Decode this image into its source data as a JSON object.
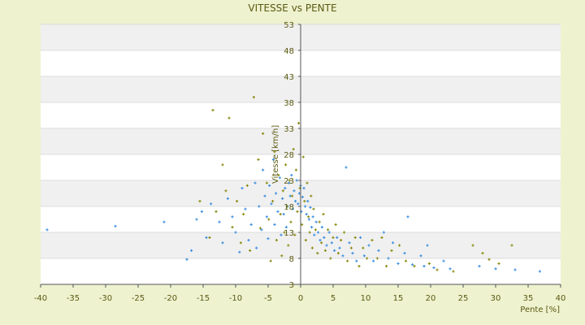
{
  "chart_data": {
    "type": "scatter",
    "title": "VITESSE vs PENTE",
    "xlabel": "Pente [%]",
    "ylabel": "Vitesse [km/h]",
    "xlim": [
      -40,
      40
    ],
    "ylim": [
      3,
      53
    ],
    "x_ticks": [
      -40,
      -35,
      -30,
      -25,
      -20,
      -15,
      -10,
      -5,
      0,
      5,
      10,
      15,
      20,
      25,
      30,
      35,
      40
    ],
    "y_ticks": [
      3,
      8,
      13,
      18,
      23,
      28,
      33,
      38,
      43,
      48,
      53
    ],
    "y_axis_position": "at x = 0",
    "background_bands": "alternating white / light gray between gridlines",
    "grid": "horizontal",
    "legend": "none",
    "series": [
      {
        "color": "#3b8ee0",
        "marker": "small cross",
        "points": [
          [
            -39,
            13.5
          ],
          [
            -28.5,
            14.2
          ],
          [
            -21,
            15
          ],
          [
            -17.5,
            7.8
          ],
          [
            -16.8,
            9.5
          ],
          [
            -16,
            15.5
          ],
          [
            -15.2,
            17
          ],
          [
            -14.5,
            12
          ],
          [
            -13.8,
            18.5
          ],
          [
            -12.5,
            15
          ],
          [
            -12,
            11
          ],
          [
            -11.2,
            19.5
          ],
          [
            -10.5,
            16
          ],
          [
            -10,
            13
          ],
          [
            -9.4,
            9.2
          ],
          [
            -9,
            21.5
          ],
          [
            -8.5,
            17.5
          ],
          [
            -8,
            11.5
          ],
          [
            -7.6,
            14.5
          ],
          [
            -7,
            22.5
          ],
          [
            -6.8,
            10
          ],
          [
            -6.4,
            18
          ],
          [
            -6,
            13.5
          ],
          [
            -5.8,
            25
          ],
          [
            -5.5,
            20
          ],
          [
            -5.2,
            16
          ],
          [
            -5,
            11.8
          ],
          [
            -4.8,
            22
          ],
          [
            -4.5,
            18.5
          ],
          [
            -4.2,
            27
          ],
          [
            -4,
            14.5
          ],
          [
            -3.8,
            20.5
          ],
          [
            -3.5,
            17
          ],
          [
            -3.2,
            23.5
          ],
          [
            -3,
            12.5
          ],
          [
            -2.8,
            19.5
          ],
          [
            -2.6,
            16.5
          ],
          [
            -2.4,
            21.5
          ],
          [
            -2.2,
            14
          ],
          [
            -2,
            18
          ],
          [
            -1.8,
            22.5
          ],
          [
            -1.6,
            20
          ],
          [
            -1.4,
            24
          ],
          [
            -1.2,
            17.5
          ],
          [
            -1,
            21
          ],
          [
            -0.8,
            19
          ],
          [
            -0.6,
            23
          ],
          [
            -0.4,
            18.5
          ],
          [
            -0.2,
            20.5
          ],
          [
            0,
            22
          ],
          [
            0.1,
            17
          ],
          [
            0.3,
            19.8
          ],
          [
            0.5,
            21.5
          ],
          [
            0.7,
            18
          ],
          [
            0.9,
            16.5
          ],
          [
            1.1,
            19
          ],
          [
            1.3,
            15.5
          ],
          [
            1.5,
            17.8
          ],
          [
            1.7,
            14
          ],
          [
            1.9,
            16
          ],
          [
            2.1,
            12.5
          ],
          [
            2.4,
            15
          ],
          [
            2.7,
            13
          ],
          [
            3,
            11.5
          ],
          [
            3.3,
            14
          ],
          [
            3.6,
            12
          ],
          [
            4,
            10.5
          ],
          [
            4.4,
            13
          ],
          [
            4.8,
            11
          ],
          [
            5.2,
            9.5
          ],
          [
            5.6,
            12
          ],
          [
            6,
            10
          ],
          [
            6.5,
            8.5
          ],
          [
            7,
            25.5
          ],
          [
            7.5,
            11
          ],
          [
            8,
            9
          ],
          [
            8.6,
            7.5
          ],
          [
            9.2,
            12
          ],
          [
            9.8,
            8.5
          ],
          [
            10.5,
            10.5
          ],
          [
            11.2,
            7.5
          ],
          [
            12,
            9.5
          ],
          [
            12.8,
            13
          ],
          [
            13.5,
            8
          ],
          [
            14.2,
            11
          ],
          [
            15,
            7
          ],
          [
            16,
            9
          ],
          [
            16.5,
            16
          ],
          [
            17.2,
            6.8
          ],
          [
            18.5,
            8.5
          ],
          [
            19,
            6.5
          ],
          [
            19.5,
            10.5
          ],
          [
            20.5,
            6.2
          ],
          [
            22,
            7.5
          ],
          [
            23,
            6
          ],
          [
            27.5,
            6.5
          ],
          [
            30,
            6
          ],
          [
            33,
            5.8
          ],
          [
            36.8,
            5.5
          ]
        ]
      },
      {
        "color": "#8a8a10",
        "marker": "small cross",
        "points": [
          [
            -15.5,
            19
          ],
          [
            -14,
            12
          ],
          [
            -13.5,
            36.5
          ],
          [
            -13,
            17
          ],
          [
            -12,
            26
          ],
          [
            -11.5,
            21
          ],
          [
            -11,
            35
          ],
          [
            -10.5,
            14
          ],
          [
            -9.8,
            19
          ],
          [
            -9.2,
            11
          ],
          [
            -8.8,
            16.5
          ],
          [
            -8.2,
            22
          ],
          [
            -7.8,
            9.5
          ],
          [
            -7.2,
            39
          ],
          [
            -6.5,
            27
          ],
          [
            -6.2,
            13.8
          ],
          [
            -5.8,
            32
          ],
          [
            -5.2,
            22.5
          ],
          [
            -4.9,
            15.5
          ],
          [
            -4.6,
            7.5
          ],
          [
            -4.3,
            19
          ],
          [
            -4,
            28.5
          ],
          [
            -3.7,
            11.5
          ],
          [
            -3.4,
            24
          ],
          [
            -3.1,
            16.5
          ],
          [
            -2.9,
            8.5
          ],
          [
            -2.7,
            21
          ],
          [
            -2.5,
            13
          ],
          [
            -2.3,
            26
          ],
          [
            -2.1,
            18
          ],
          [
            -1.9,
            10.5
          ],
          [
            -1.7,
            23
          ],
          [
            -1.5,
            15
          ],
          [
            -1.3,
            20
          ],
          [
            -1.1,
            29
          ],
          [
            -0.9,
            12.5
          ],
          [
            -0.7,
            25
          ],
          [
            -0.5,
            17
          ],
          [
            -0.3,
            34
          ],
          [
            -0.1,
            21.5
          ],
          [
            0.2,
            14.5
          ],
          [
            0.4,
            27.5
          ],
          [
            0.6,
            19
          ],
          [
            0.8,
            11.5
          ],
          [
            1,
            22.5
          ],
          [
            1.2,
            16
          ],
          [
            1.4,
            13
          ],
          [
            1.6,
            20
          ],
          [
            1.8,
            10
          ],
          [
            2,
            17.5
          ],
          [
            2.3,
            13.5
          ],
          [
            2.6,
            9
          ],
          [
            2.9,
            15
          ],
          [
            3.2,
            11
          ],
          [
            3.5,
            16.5
          ],
          [
            3.8,
            9.5
          ],
          [
            4.2,
            13.5
          ],
          [
            4.6,
            8
          ],
          [
            5,
            12
          ],
          [
            5.4,
            14.5
          ],
          [
            5.8,
            9
          ],
          [
            6.2,
            11.5
          ],
          [
            6.7,
            13
          ],
          [
            7.2,
            7.5
          ],
          [
            7.8,
            10
          ],
          [
            8.4,
            12
          ],
          [
            9,
            6.5
          ],
          [
            9.6,
            10
          ],
          [
            10.2,
            8
          ],
          [
            11,
            11.5
          ],
          [
            11.8,
            8
          ],
          [
            12.5,
            12
          ],
          [
            13.2,
            6.5
          ],
          [
            14,
            9.5
          ],
          [
            15.2,
            10.5
          ],
          [
            16.2,
            7.5
          ],
          [
            17.5,
            6.5
          ],
          [
            19.8,
            7
          ],
          [
            21,
            5.8
          ],
          [
            23.5,
            5.5
          ],
          [
            26.5,
            10.5
          ],
          [
            28,
            9
          ],
          [
            29,
            7.8
          ],
          [
            30.5,
            7
          ],
          [
            32.5,
            10.5
          ]
        ]
      }
    ]
  }
}
